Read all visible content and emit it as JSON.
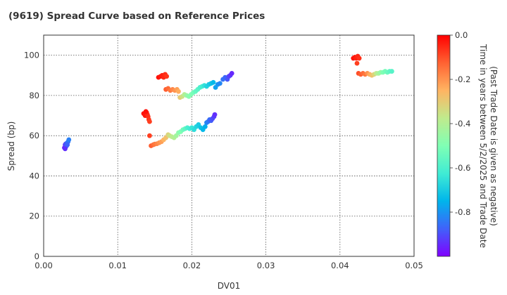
{
  "chart_data": {
    "type": "scatter",
    "title": "(9619)   Spread Curve based on Reference Prices",
    "xlabel": "DV01",
    "ylabel": "Spread (bp)",
    "xlim": [
      0.0,
      0.05
    ],
    "ylim": [
      0,
      110
    ],
    "x_ticks": [
      "0.00",
      "0.01",
      "0.02",
      "0.03",
      "0.04",
      "0.05"
    ],
    "y_ticks": [
      "0",
      "20",
      "40",
      "60",
      "80",
      "100"
    ],
    "grid": true,
    "colorbar": {
      "label_line1": "Time in years between 5/2/2025 and Trade Date",
      "label_line2": "(Past Trade Date is given as negative)",
      "range": [
        -1.0,
        0.0
      ],
      "ticks": [
        "0.0",
        "-0.2",
        "-0.4",
        "-0.6",
        "-0.8"
      ],
      "colormap": "rainbow"
    },
    "clusters": [
      {
        "name": "c1",
        "points": [
          [
            0.0028,
            54.0,
            -0.95
          ],
          [
            0.0029,
            55.5,
            -0.93
          ],
          [
            0.003,
            54.5,
            -0.92
          ],
          [
            0.003,
            56.0,
            -0.9
          ],
          [
            0.0031,
            55.0,
            -0.88
          ],
          [
            0.0032,
            56.5,
            -0.86
          ],
          [
            0.0033,
            57.0,
            -0.85
          ],
          [
            0.0034,
            58.0,
            -0.83
          ],
          [
            0.0032,
            55.5,
            -0.87
          ],
          [
            0.0029,
            53.5,
            -0.94
          ]
        ]
      },
      {
        "name": "c2",
        "points": [
          [
            0.0135,
            71.0,
            -0.02
          ],
          [
            0.0137,
            70.0,
            -0.03
          ],
          [
            0.0139,
            71.5,
            -0.04
          ],
          [
            0.014,
            70.5,
            -0.05
          ],
          [
            0.0141,
            69.5,
            -0.06
          ],
          [
            0.0142,
            68.0,
            -0.07
          ],
          [
            0.0143,
            67.0,
            -0.08
          ],
          [
            0.0138,
            72.0,
            -0.02
          ]
        ]
      },
      {
        "name": "c3",
        "points": [
          [
            0.0143,
            60.0,
            -0.08
          ],
          [
            0.0145,
            55.0,
            -0.12
          ],
          [
            0.0148,
            55.5,
            -0.14
          ],
          [
            0.015,
            55.8,
            -0.16
          ],
          [
            0.0153,
            56.0,
            -0.18
          ],
          [
            0.0156,
            56.5,
            -0.2
          ],
          [
            0.0159,
            57.0,
            -0.22
          ],
          [
            0.0162,
            58.0,
            -0.25
          ],
          [
            0.0165,
            59.0,
            -0.28
          ],
          [
            0.0168,
            60.5,
            -0.32
          ],
          [
            0.017,
            60.0,
            -0.35
          ],
          [
            0.0173,
            59.5,
            -0.38
          ],
          [
            0.0176,
            59.0,
            -0.4
          ],
          [
            0.0179,
            60.0,
            -0.43
          ],
          [
            0.0182,
            61.5,
            -0.47
          ],
          [
            0.0185,
            62.0,
            -0.5
          ],
          [
            0.0188,
            63.0,
            -0.53
          ],
          [
            0.0191,
            63.5,
            -0.56
          ],
          [
            0.0194,
            64.0,
            -0.6
          ],
          [
            0.0197,
            63.5,
            -0.62
          ],
          [
            0.02,
            64.0,
            -0.64
          ],
          [
            0.0203,
            63.0,
            -0.66
          ],
          [
            0.0206,
            64.5,
            -0.68
          ],
          [
            0.0209,
            65.5,
            -0.7
          ],
          [
            0.0212,
            64.0,
            -0.72
          ],
          [
            0.0215,
            63.0,
            -0.74
          ],
          [
            0.0218,
            64.5,
            -0.76
          ]
        ]
      },
      {
        "name": "c4",
        "points": [
          [
            0.022,
            66.5,
            -0.82
          ],
          [
            0.0222,
            67.0,
            -0.84
          ],
          [
            0.0224,
            68.0,
            -0.86
          ],
          [
            0.0226,
            67.5,
            -0.88
          ],
          [
            0.0228,
            68.5,
            -0.9
          ],
          [
            0.023,
            69.5,
            -0.92
          ],
          [
            0.0231,
            70.5,
            -0.94
          ]
        ]
      },
      {
        "name": "c5",
        "points": [
          [
            0.0155,
            89.0,
            -0.02
          ],
          [
            0.0158,
            89.5,
            -0.03
          ],
          [
            0.016,
            90.0,
            -0.04
          ],
          [
            0.0162,
            89.0,
            -0.05
          ],
          [
            0.0164,
            90.5,
            -0.06
          ],
          [
            0.0166,
            89.5,
            -0.07
          ]
        ]
      },
      {
        "name": "c6",
        "points": [
          [
            0.0165,
            83.0,
            -0.12
          ],
          [
            0.0168,
            83.5,
            -0.14
          ],
          [
            0.0171,
            82.5,
            -0.16
          ],
          [
            0.0174,
            83.0,
            -0.18
          ],
          [
            0.0177,
            82.5,
            -0.2
          ],
          [
            0.018,
            83.0,
            -0.22
          ],
          [
            0.0182,
            82.0,
            -0.24
          ],
          [
            0.0184,
            79.0,
            -0.3
          ],
          [
            0.0187,
            79.5,
            -0.35
          ],
          [
            0.019,
            80.5,
            -0.4
          ],
          [
            0.0193,
            80.0,
            -0.45
          ],
          [
            0.0196,
            79.5,
            -0.48
          ],
          [
            0.0199,
            80.5,
            -0.5
          ],
          [
            0.0202,
            81.5,
            -0.52
          ],
          [
            0.0205,
            82.0,
            -0.55
          ],
          [
            0.0208,
            83.0,
            -0.57
          ],
          [
            0.0211,
            84.0,
            -0.6
          ],
          [
            0.0214,
            84.5,
            -0.62
          ],
          [
            0.0217,
            85.0,
            -0.65
          ],
          [
            0.022,
            84.5,
            -0.68
          ],
          [
            0.0223,
            85.5,
            -0.7
          ],
          [
            0.0226,
            86.0,
            -0.72
          ],
          [
            0.0229,
            86.5,
            -0.74
          ],
          [
            0.0232,
            84.0,
            -0.78
          ],
          [
            0.0235,
            85.5,
            -0.8
          ],
          [
            0.0238,
            86.0,
            -0.82
          ]
        ]
      },
      {
        "name": "c7",
        "points": [
          [
            0.0242,
            88.0,
            -0.85
          ],
          [
            0.0245,
            89.0,
            -0.87
          ],
          [
            0.0248,
            88.0,
            -0.89
          ],
          [
            0.025,
            89.5,
            -0.91
          ],
          [
            0.0252,
            90.0,
            -0.93
          ],
          [
            0.0254,
            91.0,
            -0.95
          ]
        ]
      },
      {
        "name": "c8",
        "points": [
          [
            0.0418,
            98.5,
            -0.02
          ],
          [
            0.042,
            99.0,
            -0.03
          ],
          [
            0.0422,
            98.5,
            -0.04
          ],
          [
            0.0424,
            99.5,
            -0.05
          ],
          [
            0.0426,
            98.5,
            -0.06
          ],
          [
            0.0423,
            96.0,
            -0.08
          ]
        ]
      },
      {
        "name": "c9",
        "points": [
          [
            0.0425,
            91.0,
            -0.1
          ],
          [
            0.0428,
            90.5,
            -0.12
          ],
          [
            0.0431,
            91.0,
            -0.14
          ],
          [
            0.0434,
            90.5,
            -0.16
          ],
          [
            0.0437,
            91.0,
            -0.2
          ],
          [
            0.044,
            90.5,
            -0.24
          ],
          [
            0.0443,
            90.0,
            -0.28
          ],
          [
            0.0446,
            90.5,
            -0.32
          ],
          [
            0.0449,
            91.0,
            -0.38
          ],
          [
            0.0452,
            91.0,
            -0.42
          ],
          [
            0.0455,
            91.5,
            -0.46
          ],
          [
            0.0458,
            91.5,
            -0.5
          ],
          [
            0.0461,
            92.0,
            -0.52
          ],
          [
            0.0464,
            91.5,
            -0.54
          ],
          [
            0.0467,
            92.0,
            -0.56
          ],
          [
            0.047,
            92.0,
            -0.58
          ]
        ]
      }
    ]
  }
}
